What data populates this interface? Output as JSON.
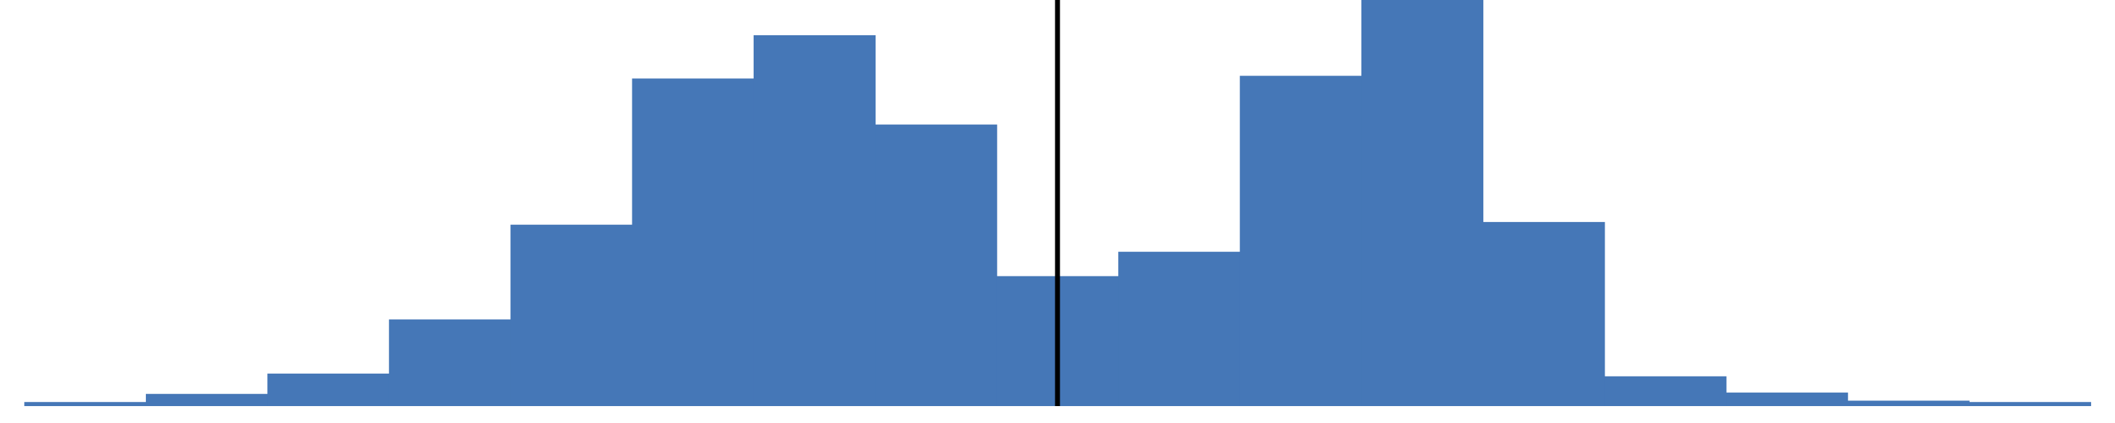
{
  "chart_data": {
    "type": "bar",
    "style": "step-histogram",
    "title": "",
    "xlabel": "",
    "ylabel": "",
    "grid": false,
    "legend": "none",
    "bar_color": "#4577B7",
    "marker_color": "#000000",
    "bins": [
      {
        "x0": 1,
        "x1": 2,
        "value": 1.5
      },
      {
        "x0": 2,
        "x1": 3,
        "value": 4.5
      },
      {
        "x0": 3,
        "x1": 4,
        "value": 12
      },
      {
        "x0": 4,
        "x1": 5,
        "value": 32
      },
      {
        "x0": 5,
        "x1": 6,
        "value": 67
      },
      {
        "x0": 6,
        "x1": 7,
        "value": 121
      },
      {
        "x0": 7,
        "x1": 8,
        "value": 137
      },
      {
        "x0": 8,
        "x1": 9,
        "value": 104
      },
      {
        "x0": 9,
        "x1": 10,
        "value": 48
      },
      {
        "x0": 10,
        "x1": 11,
        "value": 57
      },
      {
        "x0": 11,
        "x1": 12,
        "value": 122
      },
      {
        "x0": 12,
        "x1": 13,
        "value": 150
      },
      {
        "x0": 13,
        "x1": 14,
        "value": 68
      },
      {
        "x0": 14,
        "x1": 15,
        "value": 11
      },
      {
        "x0": 15,
        "x1": 16,
        "value": 5
      },
      {
        "x0": 16,
        "x1": 17,
        "value": 2
      },
      {
        "x0": 17,
        "x1": 18,
        "value": 1.5
      }
    ],
    "marker_x": 9.5,
    "xlim": [
      0.8,
      18.2
    ],
    "ylim": [
      0,
      150
    ]
  }
}
